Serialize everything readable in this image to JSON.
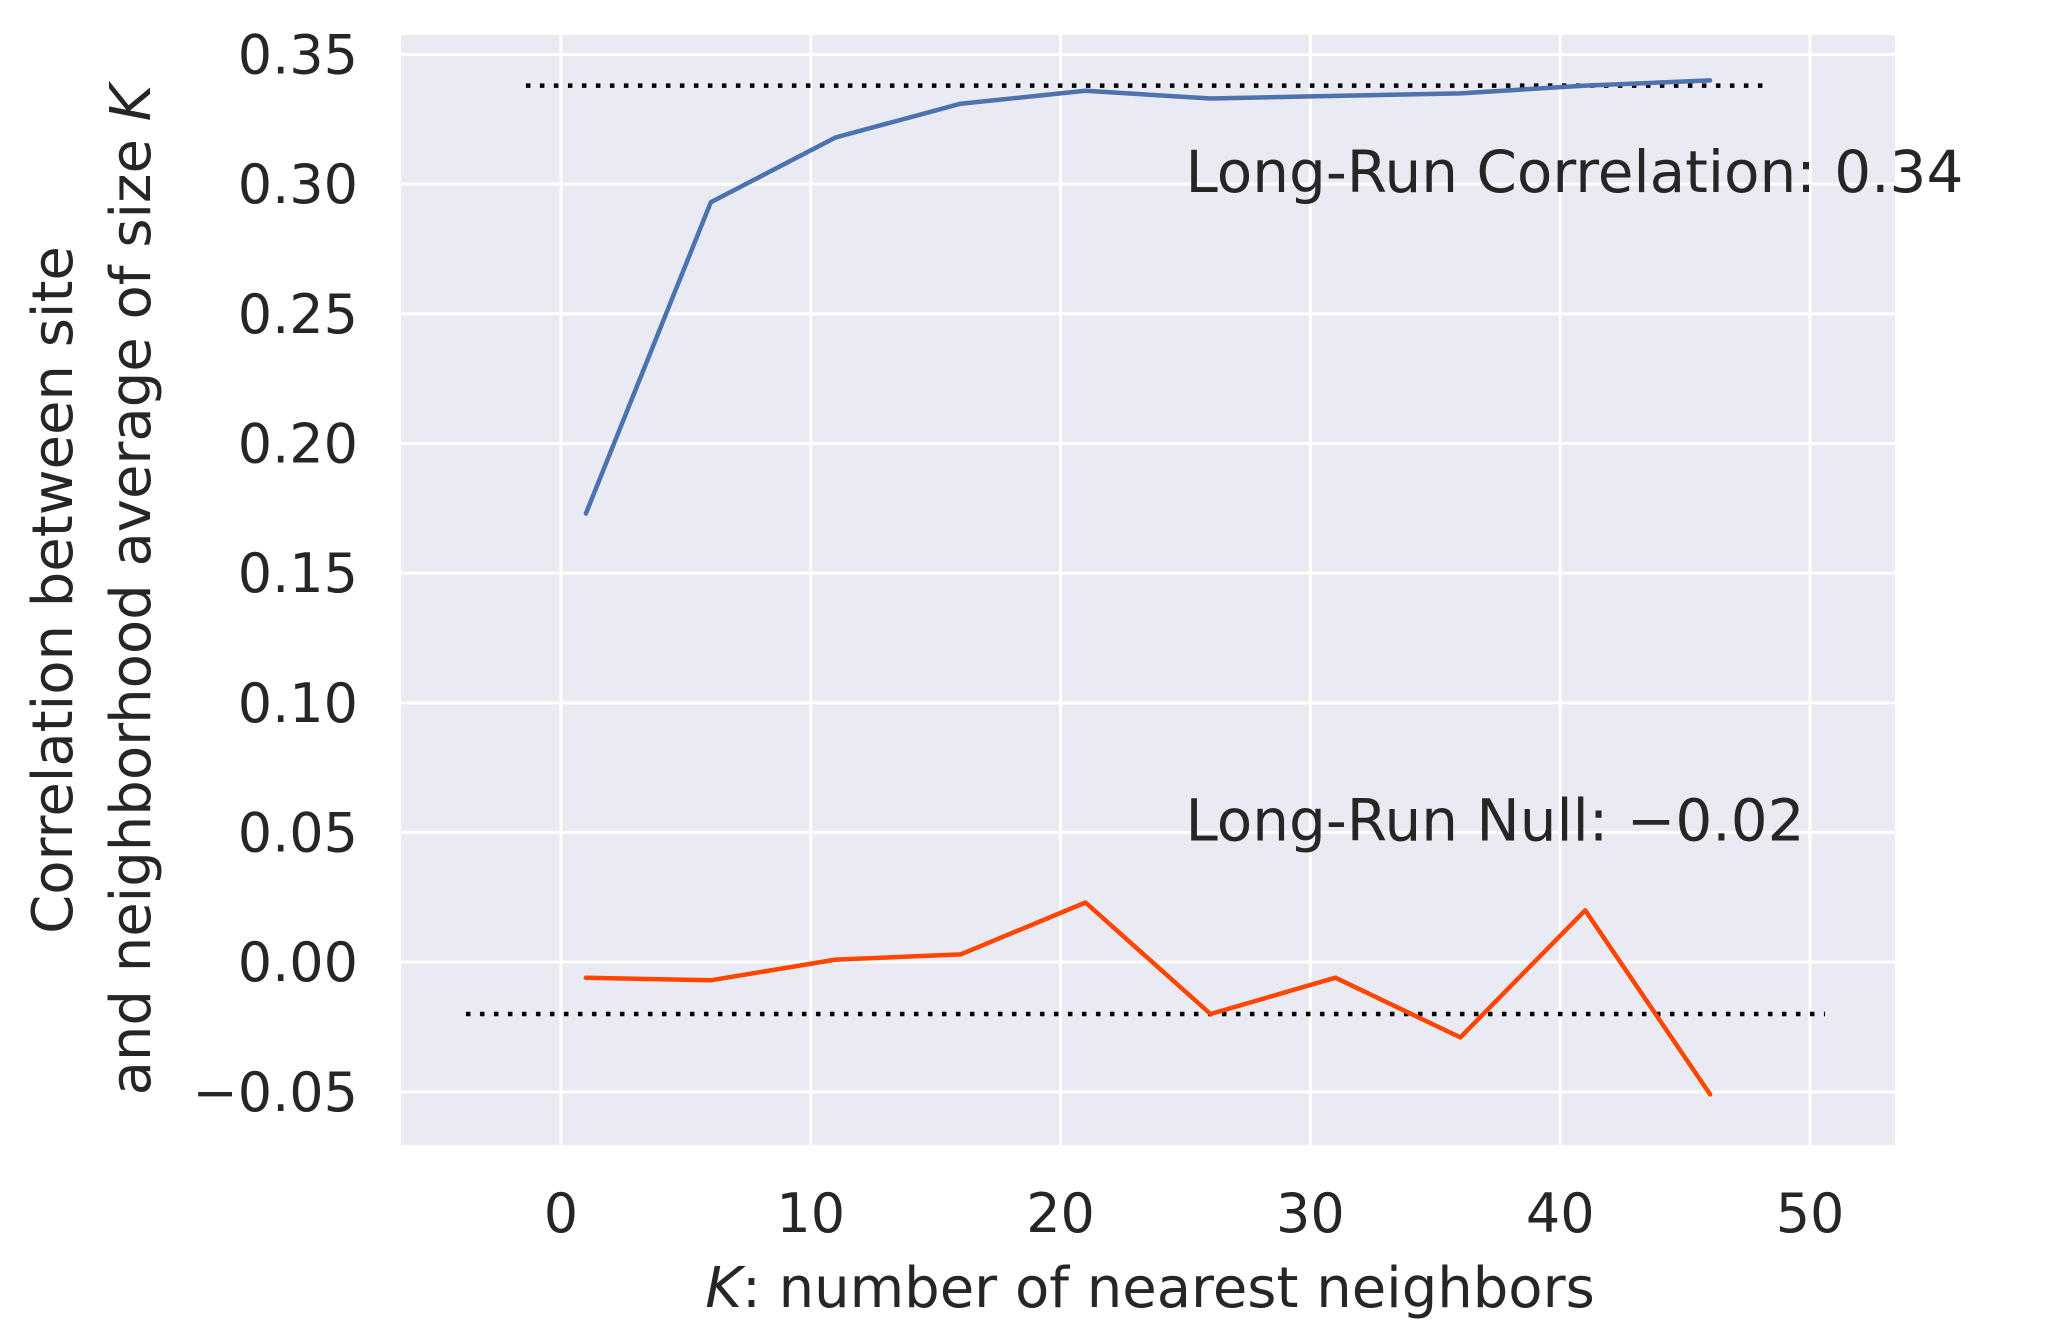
{
  "chart_data": {
    "type": "line",
    "xlabel_italic": "K",
    "xlabel_rest": ": number of nearest neighbors",
    "ylabel_line1": "Correlation between site",
    "ylabel_line2_text": "and neighborhood average of size ",
    "ylabel_line2_italic": "K",
    "xlim": [
      -6.4,
      53.4
    ],
    "ylim": [
      -0.0705,
      0.3575
    ],
    "x_ticks": [
      0,
      10,
      20,
      30,
      40,
      50
    ],
    "x_tick_labels": [
      "0",
      "10",
      "20",
      "30",
      "40",
      "50"
    ],
    "y_ticks": [
      -0.05,
      0.0,
      0.05,
      0.1,
      0.15,
      0.2,
      0.25,
      0.3,
      0.35
    ],
    "y_tick_labels": [
      "−0.05",
      "0.00",
      "0.05",
      "0.10",
      "0.15",
      "0.20",
      "0.25",
      "0.30",
      "0.35"
    ],
    "grid": true,
    "background": "#eaeaf2",
    "series": [
      {
        "x": [
          1,
          6,
          11,
          16,
          21,
          26,
          31,
          36,
          41,
          46
        ],
        "values": [
          0.173,
          0.293,
          0.318,
          0.331,
          0.336,
          0.333,
          0.334,
          0.335,
          0.338,
          0.34
        ],
        "color": "#4c72b0"
      },
      {
        "x": [
          1,
          6,
          11,
          16,
          21,
          26,
          31,
          36,
          41,
          46
        ],
        "values": [
          -0.006,
          -0.007,
          0.001,
          0.003,
          0.023,
          -0.02,
          -0.006,
          -0.029,
          0.02,
          -0.051
        ],
        "color": "#ff4500"
      }
    ],
    "hlines": [
      {
        "y": 0.338,
        "xmin": -1.4,
        "xmax": 48.2,
        "color": "#000000",
        "style": "dotted"
      },
      {
        "y": -0.02,
        "xmin": -3.8,
        "xmax": 50.6,
        "color": "#000000",
        "style": "dotted"
      }
    ],
    "annotations": [
      {
        "text": "Long-Run Correlation: 0.34",
        "x": 25,
        "y": 0.297
      },
      {
        "text": "Long-Run Null: −0.02",
        "x": 25,
        "y": 0.047
      }
    ]
  }
}
